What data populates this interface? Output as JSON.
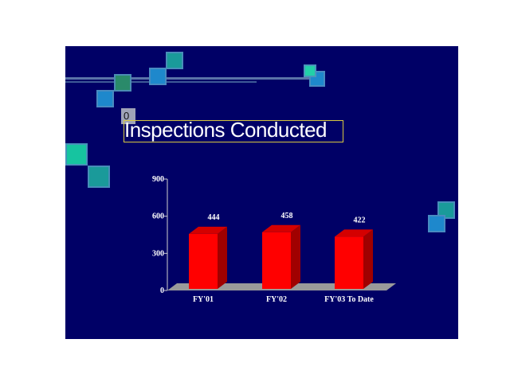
{
  "slide": {
    "badge": "0",
    "colors": {
      "background": "#000066",
      "bar_front": "#ff0000",
      "bar_side": "#a00000",
      "bar_top": "#d40000",
      "floor": "#9a9a9a"
    }
  },
  "chart_data": {
    "type": "bar",
    "title": "Inspections Conducted",
    "xlabel": "",
    "ylabel": "",
    "categories": [
      "FY'01",
      "FY'02",
      "FY'03 To Date"
    ],
    "values": [
      444,
      458,
      422
    ],
    "ylim": [
      0,
      900
    ],
    "yticks": [
      "0",
      "300",
      "600",
      "900"
    ],
    "grid": false,
    "legend": "none",
    "style": "3d-bar"
  }
}
